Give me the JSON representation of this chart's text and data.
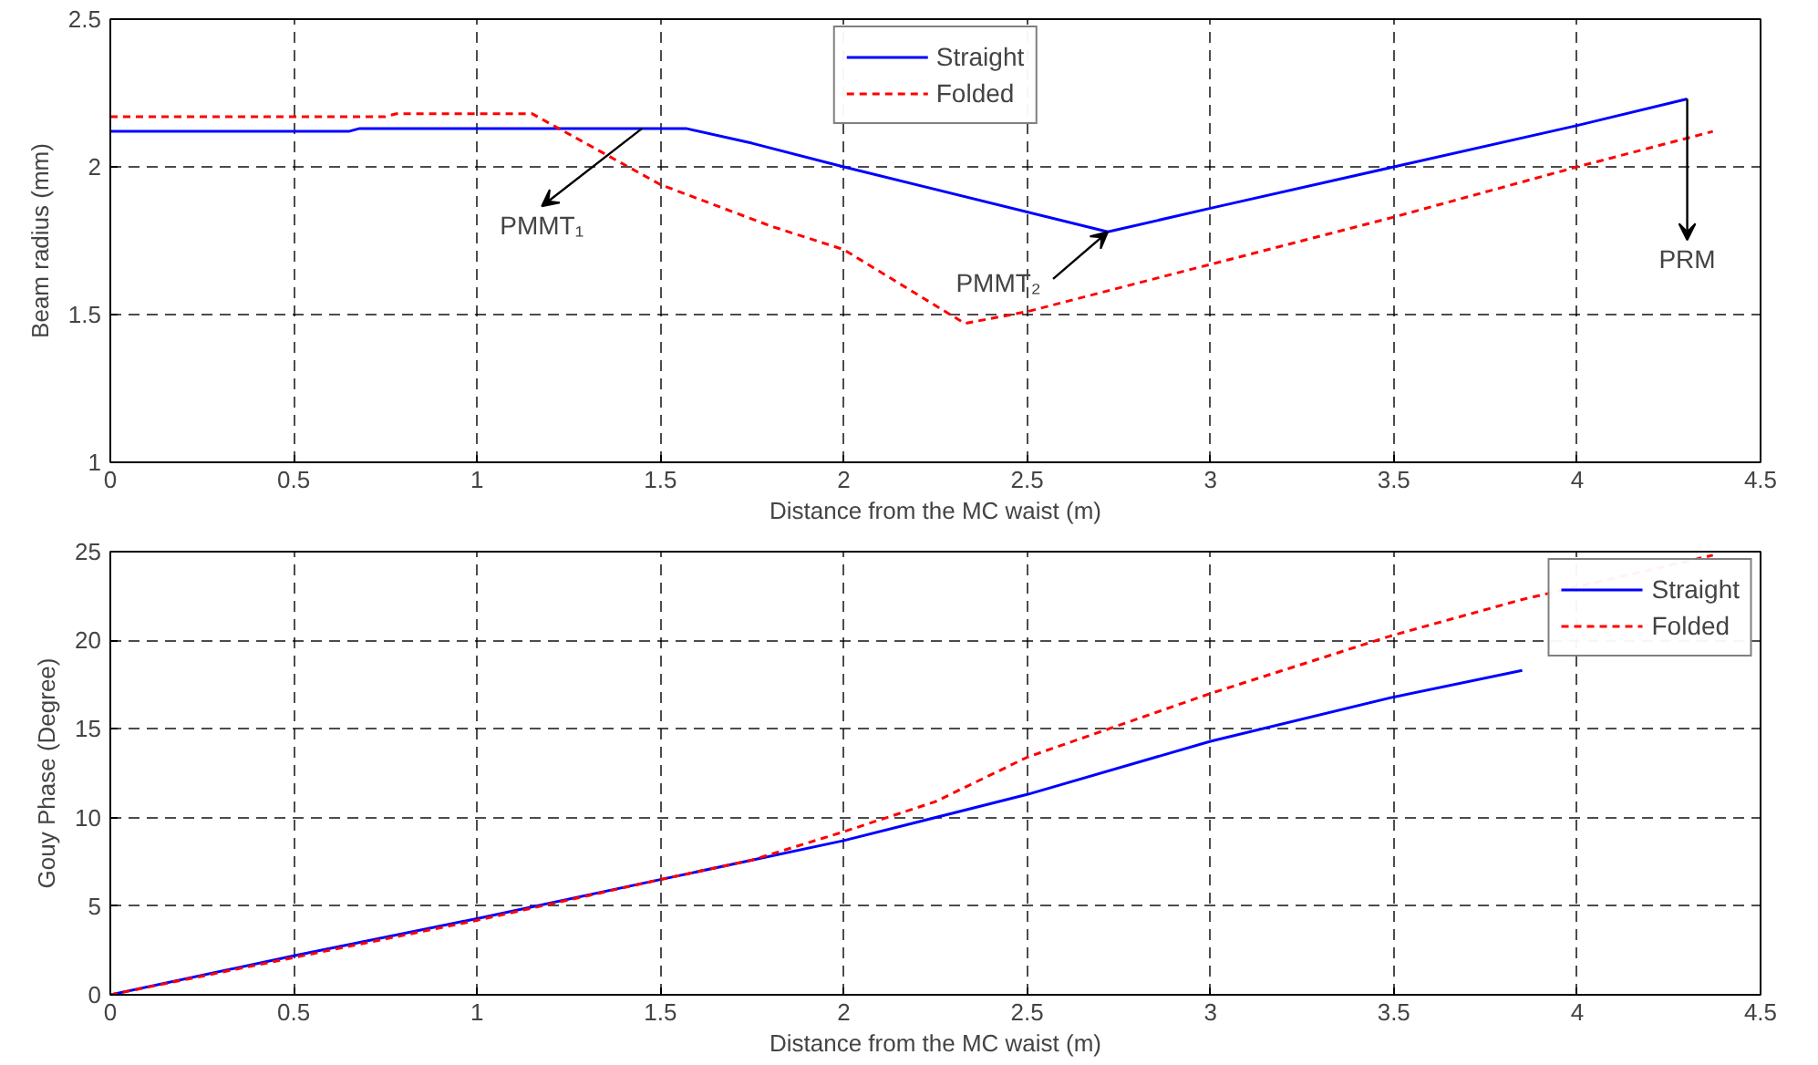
{
  "chart_data": [
    {
      "type": "line",
      "xlabel": "Distance from the MC waist (m)",
      "ylabel": "Beam radius (mm)",
      "xlim": [
        0,
        4.5
      ],
      "ylim": [
        1,
        2.5
      ],
      "xticks": [
        0,
        0.5,
        1,
        1.5,
        2,
        2.5,
        3,
        3.5,
        4,
        4.5
      ],
      "yticks": [
        1,
        1.5,
        2,
        2.5
      ],
      "grid": true,
      "legend": "top",
      "marker": "none",
      "series": [
        {
          "name": "Straight",
          "color": "#0000ff",
          "line_style": "solid",
          "x": [
            0,
            0.65,
            0.68,
            1.57,
            1.75,
            2,
            2.72,
            3,
            3.5,
            4,
            4.3
          ],
          "values": [
            2.12,
            2.12,
            2.13,
            2.13,
            2.08,
            2.0,
            1.78,
            1.86,
            2.0,
            2.14,
            2.23
          ]
        },
        {
          "name": "Folded",
          "color": "#ff0000",
          "line_style": "dashed",
          "x": [
            0,
            0.75,
            0.78,
            1.15,
            1.5,
            1.8,
            2,
            2.33,
            2.5,
            3,
            3.5,
            4,
            4.37
          ],
          "values": [
            2.17,
            2.17,
            2.18,
            2.18,
            1.94,
            1.8,
            1.72,
            1.47,
            1.51,
            1.67,
            1.83,
            2.0,
            2.12
          ]
        }
      ],
      "annotations": [
        {
          "text": "PMMT₁",
          "x": 1.45,
          "y": 2.13
        },
        {
          "text": "PMMT₂",
          "x": 2.72,
          "y": 1.78
        },
        {
          "text": "PRM",
          "x": 4.3,
          "y": 2.23
        }
      ]
    },
    {
      "type": "line",
      "xlabel": "Distance from the MC waist (m)",
      "ylabel": "Gouy Phase (Degree)",
      "xlim": [
        0,
        4.5
      ],
      "ylim": [
        0,
        25
      ],
      "xticks": [
        0,
        0.5,
        1,
        1.5,
        2,
        2.5,
        3,
        3.5,
        4,
        4.5
      ],
      "yticks": [
        0,
        5,
        10,
        15,
        20,
        25
      ],
      "grid": true,
      "legend": "top right",
      "marker": "none",
      "series": [
        {
          "name": "Straight",
          "color": "#0000ff",
          "line_style": "solid",
          "x": [
            0,
            0.5,
            1,
            1.5,
            2,
            2.5,
            3,
            3.5,
            3.85
          ],
          "values": [
            0,
            2.2,
            4.3,
            6.5,
            8.7,
            11.3,
            14.3,
            16.8,
            18.3
          ]
        },
        {
          "name": "Folded",
          "color": "#ff0000",
          "line_style": "dashed",
          "x": [
            0,
            0.5,
            1,
            1.5,
            1.75,
            2,
            2.25,
            2.5,
            3,
            3.5,
            3.85,
            4.37
          ],
          "values": [
            0,
            2.1,
            4.2,
            6.5,
            7.6,
            9.2,
            10.9,
            13.4,
            17.0,
            20.3,
            22.3,
            24.8
          ]
        }
      ]
    }
  ]
}
